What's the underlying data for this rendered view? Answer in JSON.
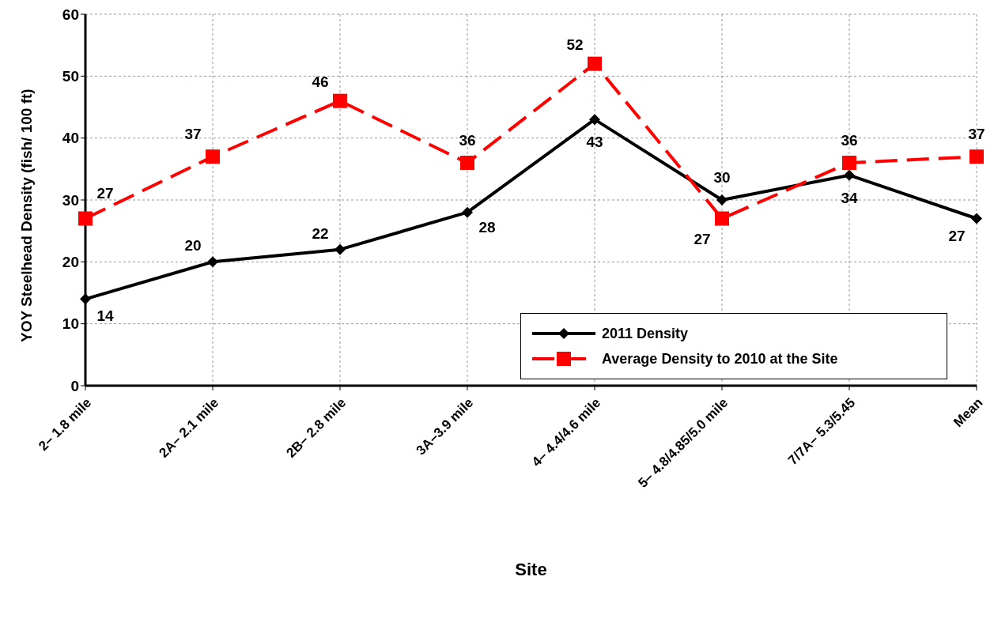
{
  "chart_data": {
    "type": "line",
    "xlabel": "Site",
    "ylabel": "YOY  Steelhead Density (fish/ 100 ft)",
    "categories": [
      "2– 1.8 mile",
      "2A– 2.1 mile",
      "2B– 2.8 mile",
      "3A–3.9 mile",
      "4– 4.4/4.6 mile",
      "5– 4.8/4.85/5.0 mile",
      "7/7A– 5.3/5.45",
      "Mean"
    ],
    "series": [
      {
        "name": "2011 Density",
        "color": "#000000",
        "marker": "diamond",
        "line_style": "solid",
        "values": [
          14,
          20,
          22,
          28,
          43,
          30,
          34,
          27
        ]
      },
      {
        "name": "Average Density to 2010 at the Site",
        "color": "#ff0000",
        "marker": "square",
        "line_style": "dashed",
        "values": [
          27,
          37,
          46,
          36,
          52,
          27,
          36,
          37
        ]
      }
    ],
    "ylim": [
      0,
      60
    ],
    "yticks": [
      0,
      10,
      20,
      30,
      40,
      50,
      60
    ],
    "grid": true,
    "legend": "bottom right",
    "data_labels": true
  }
}
